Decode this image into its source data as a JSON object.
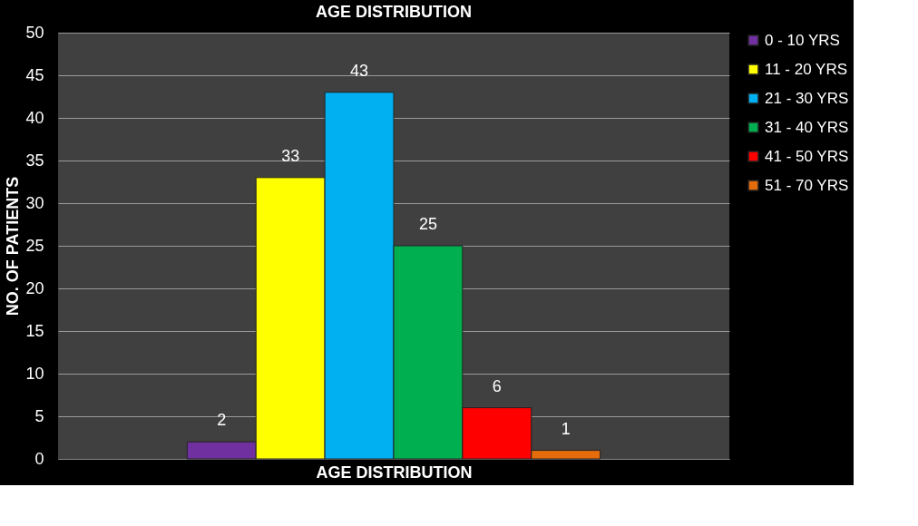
{
  "chart_data": {
    "type": "bar",
    "title": "AGE DISTRIBUTION",
    "xlabel": "AGE DISTRIBUTION",
    "ylabel": "NO. OF PATIENTS",
    "categories": [
      null
    ],
    "series": [
      {
        "name": "0 - 10 YRS",
        "color": "#7030a0",
        "values": [
          2
        ]
      },
      {
        "name": "11 - 20 YRS",
        "color": "#ffff00",
        "values": [
          33
        ]
      },
      {
        "name": "21 - 30 YRS",
        "color": "#00b0f0",
        "values": [
          43
        ]
      },
      {
        "name": "31 - 40 YRS",
        "color": "#00b050",
        "values": [
          25
        ]
      },
      {
        "name": "41 - 50 YRS",
        "color": "#ff0000",
        "values": [
          6
        ]
      },
      {
        "name": "51 - 70 YRS",
        "color": "#e46c0a",
        "values": [
          1
        ]
      }
    ],
    "ylim": [
      0,
      50
    ],
    "yticks": [
      0,
      5,
      10,
      15,
      20,
      25,
      30,
      35,
      40,
      45,
      50
    ],
    "grid": "y",
    "legend": "right",
    "data_labels": true
  }
}
